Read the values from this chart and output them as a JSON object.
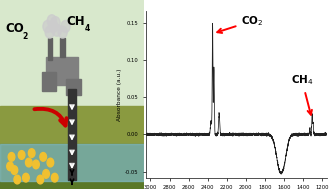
{
  "fig_width": 3.31,
  "fig_height": 1.89,
  "dpi": 100,
  "background_color": "#ffffff",
  "border_color": "#cc0000",
  "border_lw": 3.0,
  "xlim": [
    3050,
    1150
  ],
  "ylim": [
    -0.058,
    0.165
  ],
  "yticks": [
    -0.05,
    0.0,
    0.05,
    0.1,
    0.15
  ],
  "xticks": [
    3000,
    2800,
    2600,
    2400,
    2200,
    2000,
    1800,
    1600,
    1400,
    1200
  ],
  "xlabel": "Wavenumber (cm⁻¹)",
  "ylabel": "Absorbance (a.u.)",
  "line_color": "#222222",
  "sky_color": "#d8e8cc",
  "ground1_color": "#8a9a40",
  "ground2_color": "#6a8830",
  "brine_color": "#80b8c0",
  "deep_color": "#5a7828",
  "bubble_color": "#f0c030",
  "factory_color": "#707070",
  "smoke_color": "#cccccc",
  "pipe_color": "#333333",
  "arrow_color": "#cc0000"
}
